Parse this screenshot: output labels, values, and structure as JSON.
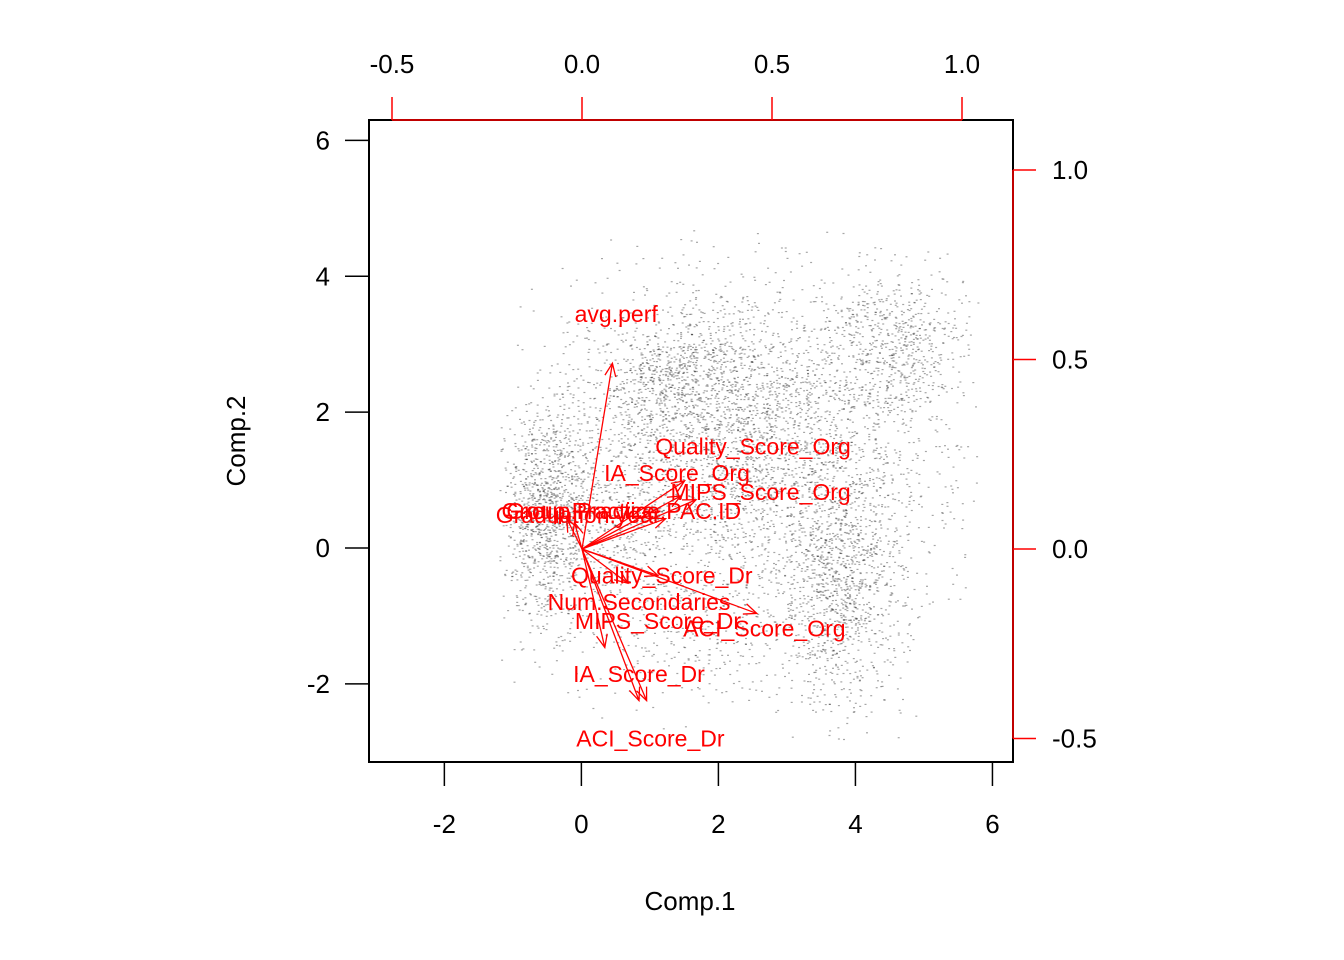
{
  "chart_data": {
    "type": "scatter",
    "subtype": "biplot",
    "xlabel": "Comp.1",
    "ylabel": "Comp.2",
    "xlim": [
      -3.1,
      6.3
    ],
    "ylim": [
      -3.15,
      6.3
    ],
    "bottom_ticks": [
      "-2",
      "0",
      "2",
      "4",
      "6"
    ],
    "left_ticks": [
      "-2",
      "0",
      "2",
      "4",
      "6"
    ],
    "top_ticks": [
      "-0.5",
      "0.0",
      "0.5",
      "1.0"
    ],
    "right_ticks": [
      "-0.5",
      "0.0",
      "0.5",
      "1.0"
    ],
    "loading_lim": [
      -0.5,
      1.0
    ],
    "colors": {
      "points": "#000000",
      "loadings": "#ff0000",
      "axis": "#000000"
    },
    "point_clusters": [
      {
        "cx": 2.2,
        "cy": 1.8,
        "sx": 1.2,
        "sy": 1.1,
        "n": 2600
      },
      {
        "cx": 0.2,
        "cy": 0.4,
        "sx": 0.8,
        "sy": 0.8,
        "n": 600
      },
      {
        "cx": -0.5,
        "cy": 0.5,
        "sx": 0.3,
        "sy": 0.8,
        "n": 900
      },
      {
        "cx": 3.8,
        "cy": -0.6,
        "sx": 0.45,
        "sy": 0.9,
        "n": 1000
      },
      {
        "cx": 4.6,
        "cy": 3.0,
        "sx": 0.5,
        "sy": 0.55,
        "n": 600
      },
      {
        "cx": 1.2,
        "cy": 2.5,
        "sx": 0.6,
        "sy": 0.35,
        "n": 400
      },
      {
        "cx": 3.0,
        "cy": 0.8,
        "sx": 1.3,
        "sy": 1.2,
        "n": 900
      },
      {
        "cx": 1.8,
        "cy": -1.3,
        "sx": 1.0,
        "sy": 0.5,
        "n": 300
      }
    ],
    "loadings": [
      {
        "label": "avg.perf",
        "x": 0.08,
        "y": 0.49,
        "lx": 0.09,
        "ly": 0.62
      },
      {
        "label": "Quality_Score_Org",
        "x": 0.3,
        "y": 0.13,
        "lx": 0.45,
        "ly": 0.27
      },
      {
        "label": "IA_Score_Org",
        "x": 0.27,
        "y": 0.18,
        "lx": 0.25,
        "ly": 0.2
      },
      {
        "label": "MIPS_Score_Org",
        "x": 0.26,
        "y": 0.14,
        "lx": 0.47,
        "ly": 0.15
      },
      {
        "label": "Group.Practice.PAC.ID",
        "x": 0.22,
        "y": 0.08,
        "lx": 0.11,
        "ly": 0.1
      },
      {
        "label": "Graduation.year",
        "x": -0.02,
        "y": 0.07,
        "lx": -0.01,
        "ly": 0.09
      },
      {
        "label": "Group.Practice",
        "x": -0.04,
        "y": 0.08,
        "lx": -0.01,
        "ly": 0.1
      },
      {
        "label": "Quality_Score_Dr",
        "x": 0.2,
        "y": -0.07,
        "lx": 0.21,
        "ly": -0.07
      },
      {
        "label": "Num.Secondaries",
        "x": 0.12,
        "y": -0.09,
        "lx": 0.15,
        "ly": -0.14
      },
      {
        "label": "ACI_Score_Org",
        "x": 0.46,
        "y": -0.17,
        "lx": 0.48,
        "ly": -0.21
      },
      {
        "label": "MIPS_Score_Dr",
        "x": 0.06,
        "y": -0.26,
        "lx": 0.2,
        "ly": -0.19
      },
      {
        "label": "IA_Score_Dr",
        "x": 0.15,
        "y": -0.4,
        "lx": 0.15,
        "ly": -0.33
      },
      {
        "label": "ACI_Score_Dr",
        "x": 0.17,
        "y": -0.4,
        "lx": 0.18,
        "ly": -0.5
      }
    ]
  }
}
